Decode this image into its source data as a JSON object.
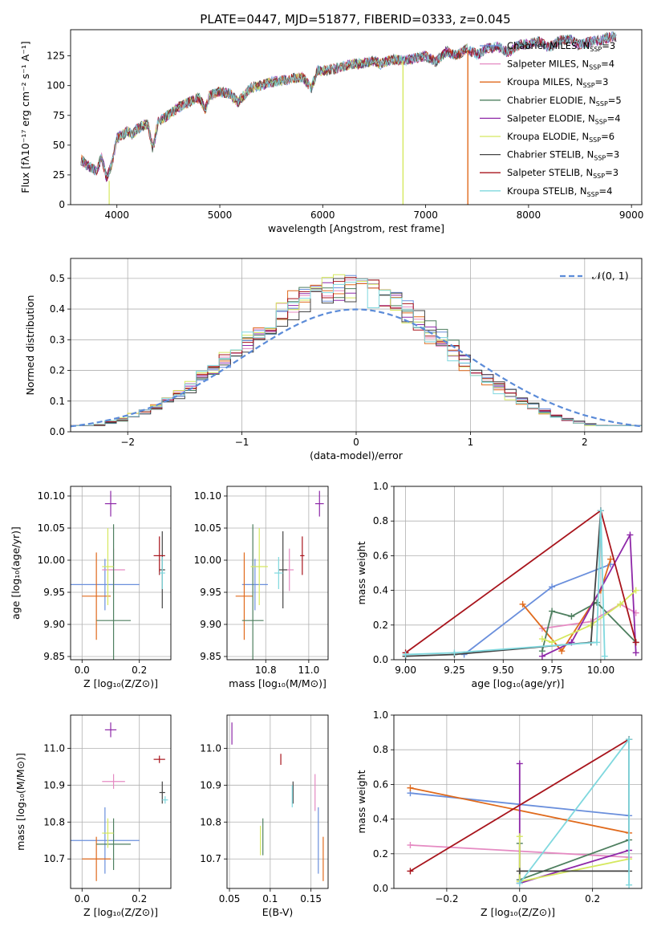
{
  "chart_data": {
    "title": "PLATE=0447, MJD=51877, FIBERID=0333, z=0.045",
    "series_colors": [
      "#6a8fdc",
      "#e58ac2",
      "#e06a1c",
      "#4e7f5f",
      "#8e28a8",
      "#d5e85f",
      "#444444",
      "#a8141c",
      "#7fd8de"
    ],
    "legend_entries": [
      {
        "base": "Chabrier MILES, N",
        "sub": "SSP",
        "tail": "=3"
      },
      {
        "base": "Salpeter MILES, N",
        "sub": "SSP",
        "tail": "=4"
      },
      {
        "base": "Kroupa MILES, N",
        "sub": "SSP",
        "tail": "=3"
      },
      {
        "base": "Chabrier ELODIE, N",
        "sub": "SSP",
        "tail": "=5"
      },
      {
        "base": "Salpeter ELODIE, N",
        "sub": "SSP",
        "tail": "=4"
      },
      {
        "base": "Kroupa ELODIE, N",
        "sub": "SSP",
        "tail": "=6"
      },
      {
        "base": "Chabrier STELIB, N",
        "sub": "SSP",
        "tail": "=3"
      },
      {
        "base": "Salpeter STELIB, N",
        "sub": "SSP",
        "tail": "=3"
      },
      {
        "base": "Kroupa STELIB, N",
        "sub": "SSP",
        "tail": "=4"
      }
    ],
    "panels": {
      "spectrum": {
        "type": "line",
        "xlabel": "wavelength [Angstrom, rest frame]",
        "ylabel": "Flux [fλ10⁻¹⁷ erg cm⁻² s⁻¹ A⁻¹]",
        "xlim": [
          3550,
          9100
        ],
        "ylim": [
          0,
          147
        ],
        "xticks": [
          4000,
          5000,
          6000,
          7000,
          8000,
          9000
        ],
        "yticks": [
          0,
          25,
          50,
          75,
          100,
          125
        ],
        "x": [
          3650,
          3700,
          3800,
          3850,
          3900,
          3950,
          4000,
          4050,
          4100,
          4150,
          4200,
          4300,
          4350,
          4400,
          4500,
          4600,
          4700,
          4800,
          4861,
          4900,
          5000,
          5100,
          5175,
          5300,
          5400,
          5500,
          5600,
          5700,
          5800,
          5890,
          5950,
          6000,
          6100,
          6200,
          6300,
          6400,
          6500,
          6563,
          6600,
          6700,
          6800,
          6900,
          7000,
          7100,
          7200,
          7300,
          7400,
          7500,
          7600,
          7700,
          7800,
          7900,
          8000,
          8100,
          8200,
          8300,
          8400,
          8500,
          8600,
          8700,
          8800
        ],
        "y": [
          38,
          34,
          28,
          40,
          22,
          34,
          56,
          58,
          62,
          59,
          64,
          68,
          46,
          70,
          75,
          82,
          86,
          90,
          80,
          92,
          95,
          93,
          86,
          98,
          100,
          103,
          104,
          106,
          107,
          98,
          113,
          112,
          114,
          116,
          118,
          119,
          121,
          118,
          120,
          122,
          121,
          123,
          125,
          120,
          129,
          125,
          131,
          126,
          131,
          133,
          128,
          134,
          135,
          137,
          132,
          138,
          139,
          134,
          137,
          138,
          141
        ],
        "truncated": [
          {
            "name": "Kroupa ELODIE",
            "start": 3920
          },
          {
            "name": "Kroupa ELODIE",
            "end": 6780
          },
          {
            "name": "Kroupa MILES",
            "end": 7410
          }
        ]
      },
      "residual_hist": {
        "type": "area",
        "xlabel": "(data-model)/error",
        "ylabel": "Normed distribution",
        "xlim": [
          -2.5,
          2.5
        ],
        "ylim": [
          0,
          0.565
        ],
        "xticks": [
          -2,
          -1,
          0,
          1,
          2
        ],
        "yticks": [
          0.0,
          0.1,
          0.2,
          0.3,
          0.4,
          0.5
        ],
        "legend": "𝒩(0, 1)",
        "bin_width": 0.1,
        "approx_peak": 0.47,
        "approx_sigma": 0.88
      },
      "age_vs_Z": {
        "type": "scatter",
        "xlabel": "Z [log₁₀(Z/Z⊙)]",
        "ylabel": "age  [log₁₀(age/yr)]",
        "xlim": [
          -0.04,
          0.31
        ],
        "ylim": [
          9.845,
          10.115
        ],
        "xticks": [
          0.0,
          0.2
        ],
        "yticks": [
          9.85,
          9.9,
          9.95,
          10.0,
          10.05,
          10.1
        ],
        "points": [
          {
            "x": 0.08,
            "y": 9.962,
            "xerr": 0.12,
            "yerr": 0.04
          },
          {
            "x": 0.11,
            "y": 9.985,
            "xerr": 0.04,
            "yerr": 0.033
          },
          {
            "x": 0.05,
            "y": 9.944,
            "xerr": 0.05,
            "yerr": 0.068
          },
          {
            "x": 0.11,
            "y": 9.906,
            "xerr": 0.06,
            "yerr": 0.15
          },
          {
            "x": 0.1,
            "y": 10.088,
            "xerr": 0.02,
            "yerr": 0.02
          },
          {
            "x": 0.09,
            "y": 9.99,
            "xerr": 0.02,
            "yerr": 0.06
          },
          {
            "x": 0.28,
            "y": 9.985,
            "xerr": 0.01,
            "yerr": 0.06
          },
          {
            "x": 0.27,
            "y": 10.007,
            "xerr": 0.02,
            "yerr": 0.03
          },
          {
            "x": 0.28,
            "y": 9.98,
            "xerr": 0.01,
            "yerr": 0.025
          }
        ]
      },
      "age_vs_mass": {
        "type": "scatter",
        "xlabel": "mass [log₁₀(M/M⊙)]",
        "ylabel": "",
        "xlim": [
          10.62,
          11.09
        ],
        "ylim": [
          9.845,
          10.115
        ],
        "xticks": [
          10.8,
          11.0
        ],
        "yticks": [
          9.85,
          9.9,
          9.95,
          10.0,
          10.05,
          10.1
        ],
        "points": [
          {
            "x": 10.75,
            "y": 9.962,
            "xerr": 0.06,
            "yerr": 0.04
          },
          {
            "x": 10.91,
            "y": 9.985,
            "xerr": 0.02,
            "yerr": 0.033
          },
          {
            "x": 10.7,
            "y": 9.944,
            "xerr": 0.04,
            "yerr": 0.068
          },
          {
            "x": 10.74,
            "y": 9.906,
            "xerr": 0.05,
            "yerr": 0.15
          },
          {
            "x": 11.05,
            "y": 10.088,
            "xerr": 0.02,
            "yerr": 0.02
          },
          {
            "x": 10.77,
            "y": 9.99,
            "xerr": 0.04,
            "yerr": 0.06
          },
          {
            "x": 10.88,
            "y": 9.985,
            "xerr": 0.02,
            "yerr": 0.06
          },
          {
            "x": 10.97,
            "y": 10.007,
            "xerr": 0.01,
            "yerr": 0.03
          },
          {
            "x": 10.86,
            "y": 9.98,
            "xerr": 0.02,
            "yerr": 0.025
          }
        ]
      },
      "mass_vs_Z": {
        "type": "scatter",
        "xlabel": "Z [log₁₀(Z/Z⊙)]",
        "ylabel": "mass [log₁₀(M/M⊙)]",
        "xlim": [
          -0.04,
          0.31
        ],
        "ylim": [
          10.62,
          11.09
        ],
        "xticks": [
          0.0,
          0.2
        ],
        "yticks": [
          10.7,
          10.8,
          10.9,
          11.0
        ],
        "points": [
          {
            "x": 0.08,
            "y": 10.75,
            "xerr": 0.12,
            "yerr": 0.09
          },
          {
            "x": 0.11,
            "y": 10.91,
            "xerr": 0.04,
            "yerr": 0.02
          },
          {
            "x": 0.05,
            "y": 10.7,
            "xerr": 0.05,
            "yerr": 0.06
          },
          {
            "x": 0.11,
            "y": 10.74,
            "xerr": 0.06,
            "yerr": 0.07
          },
          {
            "x": 0.1,
            "y": 11.05,
            "xerr": 0.02,
            "yerr": 0.02
          },
          {
            "x": 0.09,
            "y": 10.77,
            "xerr": 0.02,
            "yerr": 0.04
          },
          {
            "x": 0.28,
            "y": 10.88,
            "xerr": 0.01,
            "yerr": 0.03
          },
          {
            "x": 0.27,
            "y": 10.97,
            "xerr": 0.02,
            "yerr": 0.01
          },
          {
            "x": 0.29,
            "y": 10.86,
            "xerr": 0.01,
            "yerr": 0.01
          }
        ]
      },
      "mass_vs_EBV": {
        "type": "scatter",
        "xlabel": "E(B-V)",
        "ylabel": "",
        "xlim": [
          0.047,
          0.171
        ],
        "ylim": [
          10.62,
          11.09
        ],
        "xticks": [
          0.05,
          0.1,
          0.15
        ],
        "yticks": [
          10.7,
          10.8,
          10.9,
          11.0
        ],
        "points": [
          {
            "x": 0.159,
            "y": 10.75,
            "yerr": 0.09
          },
          {
            "x": 0.155,
            "y": 10.88,
            "yerr": 0.05
          },
          {
            "x": 0.165,
            "y": 10.7,
            "yerr": 0.06
          },
          {
            "x": 0.091,
            "y": 10.76,
            "yerr": 0.05
          },
          {
            "x": 0.053,
            "y": 11.04,
            "yerr": 0.03
          },
          {
            "x": 0.088,
            "y": 10.75,
            "yerr": 0.04
          },
          {
            "x": 0.128,
            "y": 10.88,
            "yerr": 0.03
          },
          {
            "x": 0.113,
            "y": 10.97,
            "yerr": 0.015
          },
          {
            "x": 0.127,
            "y": 10.87,
            "yerr": 0.03
          }
        ]
      },
      "weight_vs_age": {
        "type": "line",
        "xlabel": "age  [log₁₀(age/yr)]",
        "ylabel": "mass weight",
        "xlim": [
          8.94,
          10.21
        ],
        "ylim": [
          0,
          1.0
        ],
        "xticks": [
          9.0,
          9.25,
          9.5,
          9.75,
          10.0
        ],
        "yticks": [
          0.0,
          0.2,
          0.4,
          0.6,
          0.8,
          1.0
        ],
        "series": [
          {
            "name": "Chabrier MILES",
            "x": [
              9.3,
              9.75,
              10.05
            ],
            "y": [
              0.03,
              0.42,
              0.55
            ]
          },
          {
            "name": "Salpeter MILES",
            "x": [
              9.7,
              9.95,
              10.1,
              10.18
            ],
            "y": [
              0.18,
              0.22,
              0.32,
              0.27
            ]
          },
          {
            "name": "Kroupa MILES",
            "x": [
              9.6,
              9.8,
              10.0,
              10.05
            ],
            "y": [
              0.32,
              0.05,
              0.4,
              0.58
            ]
          },
          {
            "name": "Chabrier ELODIE",
            "x": [
              9.7,
              9.75,
              9.85,
              9.98,
              10.18
            ],
            "y": [
              0.05,
              0.28,
              0.25,
              0.33,
              0.1
            ]
          },
          {
            "name": "Salpeter ELODIE",
            "x": [
              9.7,
              9.85,
              10.15,
              10.18
            ],
            "y": [
              0.02,
              0.1,
              0.72,
              0.04
            ]
          },
          {
            "name": "Kroupa ELODIE",
            "x": [
              9.7,
              9.75,
              9.95,
              10.1,
              10.18
            ],
            "y": [
              0.12,
              0.1,
              0.2,
              0.32,
              0.4
            ]
          },
          {
            "name": "Chabrier STELIB",
            "x": [
              9.0,
              9.25,
              9.95,
              10.0
            ],
            "y": [
              0.02,
              0.03,
              0.1,
              0.86
            ]
          },
          {
            "name": "Salpeter STELIB",
            "x": [
              9.0,
              10.0,
              10.18
            ],
            "y": [
              0.04,
              0.86,
              0.1
            ]
          },
          {
            "name": "Kroupa STELIB",
            "x": [
              9.0,
              9.25,
              9.98,
              10.0,
              10.02
            ],
            "y": [
              0.03,
              0.04,
              0.1,
              0.86,
              0.02
            ]
          }
        ]
      },
      "weight_vs_Z": {
        "type": "line",
        "xlabel": "Z [log₁₀(Z/Z⊙)]",
        "ylabel": "mass weight",
        "xlim": [
          -0.345,
          0.335
        ],
        "ylim": [
          0,
          1.0
        ],
        "xticks": [
          -0.2,
          0.0,
          0.2
        ],
        "yticks": [
          0.0,
          0.2,
          0.4,
          0.6,
          0.8,
          1.0
        ],
        "series": [
          {
            "name": "Chabrier MILES",
            "x": [
              -0.3,
              0.3
            ],
            "y": [
              0.55,
              0.42
            ]
          },
          {
            "name": "Salpeter MILES",
            "x": [
              -0.3,
              0.3
            ],
            "y": [
              0.25,
              0.18
            ]
          },
          {
            "name": "Kroupa MILES",
            "x": [
              -0.3,
              0.3
            ],
            "y": [
              0.58,
              0.32
            ]
          },
          {
            "name": "Chabrier ELODIE",
            "x": [
              0.0,
              0.0,
              0.3
            ],
            "y": [
              0.26,
              0.05,
              0.28
            ]
          },
          {
            "name": "Salpeter ELODIE",
            "x": [
              0.0,
              0.0,
              0.3
            ],
            "y": [
              0.72,
              0.03,
              0.22
            ]
          },
          {
            "name": "Kroupa ELODIE",
            "x": [
              0.0,
              0.0,
              0.3
            ],
            "y": [
              0.3,
              0.04,
              0.17
            ]
          },
          {
            "name": "Chabrier STELIB",
            "x": [
              0.0,
              0.3,
              0.3
            ],
            "y": [
              0.1,
              0.1,
              0.86
            ]
          },
          {
            "name": "Salpeter STELIB",
            "x": [
              -0.3,
              0.3
            ],
            "y": [
              0.1,
              0.86
            ]
          },
          {
            "name": "Kroupa STELIB",
            "x": [
              0.0,
              0.3,
              0.3
            ],
            "y": [
              0.03,
              0.86,
              0.02
            ]
          }
        ]
      }
    }
  }
}
